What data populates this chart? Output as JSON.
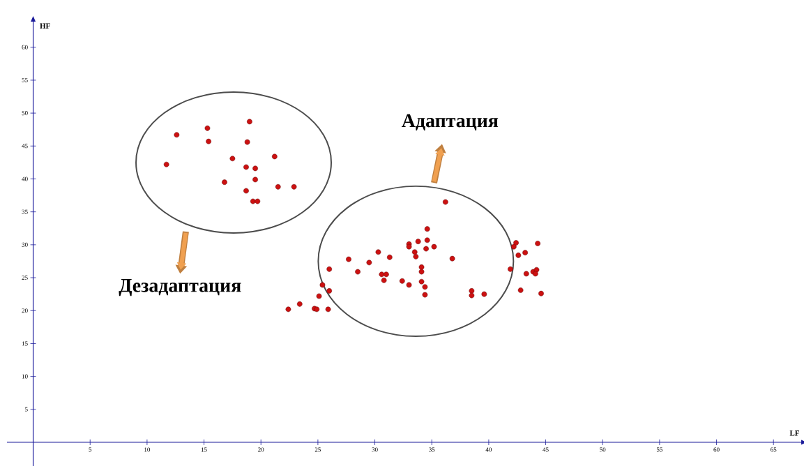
{
  "chart_data": {
    "type": "scatter",
    "xlabel": "LF",
    "ylabel": "HF",
    "x": [
      12.6,
      15.3,
      15.4,
      19.0,
      18.8,
      11.7,
      17.5,
      21.2,
      18.7,
      19.5,
      19.5,
      16.8,
      18.7,
      21.5,
      22.9,
      19.3,
      19.7,
      36.2,
      34.6,
      34.6,
      33.8,
      33.0,
      33.0,
      35.2,
      34.5,
      33.5,
      33.6,
      30.3,
      31.3,
      27.7,
      29.5,
      36.8,
      26.0,
      28.5,
      34.1,
      34.1,
      30.6,
      31.0,
      30.8,
      32.4,
      33.0,
      34.1,
      34.4,
      34.4,
      25.4,
      26.0,
      25.1,
      23.4,
      22.4,
      24.7,
      24.9,
      25.9,
      38.5,
      38.5,
      39.6,
      42.4,
      42.2,
      44.3,
      42.6,
      43.2,
      41.9,
      43.3,
      43.9,
      44.2,
      44.1,
      42.8,
      44.6
    ],
    "values": [
      46.7,
      47.7,
      45.7,
      48.7,
      45.6,
      42.2,
      43.1,
      43.4,
      41.8,
      41.6,
      39.9,
      39.5,
      38.2,
      38.8,
      38.8,
      36.6,
      36.6,
      36.5,
      32.4,
      30.7,
      30.5,
      30.1,
      29.7,
      29.7,
      29.4,
      28.9,
      28.2,
      28.9,
      28.1,
      27.8,
      27.3,
      27.9,
      26.3,
      25.9,
      26.6,
      25.9,
      25.5,
      25.5,
      24.6,
      24.5,
      23.9,
      24.4,
      23.6,
      22.4,
      23.9,
      23.0,
      22.2,
      21.0,
      20.2,
      20.3,
      20.2,
      20.2,
      23.0,
      22.3,
      22.5,
      30.3,
      29.7,
      30.2,
      28.4,
      28.8,
      26.3,
      25.6,
      25.9,
      26.2,
      25.6,
      23.1,
      22.6
    ],
    "color": "#cc1111",
    "marker": "circle",
    "xlim": [
      -2.3,
      67.5
    ],
    "ylim": [
      -3.6,
      64.0
    ],
    "xticks": [
      5,
      10,
      15,
      20,
      25,
      30,
      35,
      40,
      45,
      50,
      55,
      60,
      65
    ],
    "yticks": [
      5,
      10,
      15,
      20,
      25,
      30,
      35,
      40,
      45,
      50,
      55,
      60
    ],
    "annotations": [
      "Адаптация",
      "Дезадаптация"
    ]
  }
}
